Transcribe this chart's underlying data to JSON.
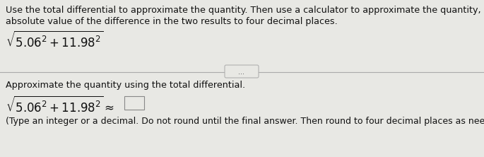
{
  "bg_color": "#e8e8e4",
  "top_text_line1": "Use the total differential to approximate the quantity. Then use a calculator to approximate the quantity, and give the",
  "top_text_line2": "absolute value of the difference in the two results to four decimal places.",
  "formula_top": "$\\sqrt{5.06^2+11.98^2}$",
  "bottom_label": "Approximate the quantity using the total differential.",
  "formula_bottom_left": "$\\sqrt{5.06^2+11.98^2}\\approx$",
  "footnote": "(Type an integer or a decimal. Do not round until the final answer. Then round to four decimal places as needed..)",
  "text_color": "#111111",
  "dots_text": "...",
  "font_size_main": 9.2,
  "font_size_formula": 12,
  "font_size_footnote": 9.0,
  "divider_color": "#aaaaaa",
  "box_edge_color": "#888888"
}
